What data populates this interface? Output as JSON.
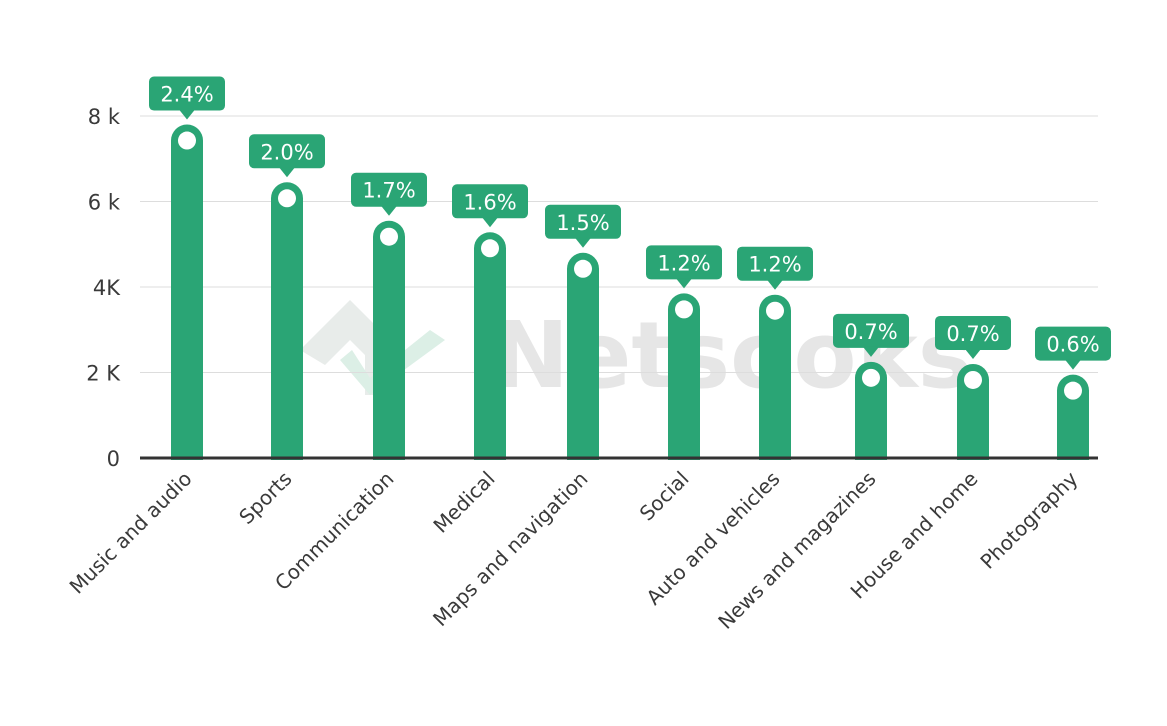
{
  "colors": {
    "bar": "#2aa575",
    "gridline": "#dddddd",
    "axis": "#333333",
    "label_text": "#3a3a3a",
    "watermark_text": "#e6e6e6",
    "watermark_logo": "#e3ece8"
  },
  "watermark": {
    "text": "Netsooks",
    "icon": "netsooks-logo-icon"
  },
  "chart_data": {
    "type": "bar",
    "title": "",
    "xlabel": "",
    "ylabel": "",
    "ylim": [
      0,
      8000
    ],
    "grid": true,
    "y_ticks": [
      {
        "value": 0,
        "label": "0"
      },
      {
        "value": 2000,
        "label": "2 K"
      },
      {
        "value": 4000,
        "label": "4K"
      },
      {
        "value": 6000,
        "label": "6 k"
      },
      {
        "value": 8000,
        "label": "8 k"
      }
    ],
    "categories": [
      "Music and audio",
      "Sports",
      "Communication",
      "Medical",
      "Maps and navigation",
      "Social",
      "Auto and vehicles",
      "News and magazines",
      "House and home",
      "Photography"
    ],
    "values": [
      7800,
      6450,
      5550,
      5280,
      4800,
      3850,
      3820,
      2250,
      2200,
      1950
    ],
    "data_labels": [
      "2.4%",
      "2.0%",
      "1.7%",
      "1.6%",
      "1.5%",
      "1.2%",
      "1.2%",
      "0.7%",
      "0.7%",
      "0.6%"
    ]
  }
}
